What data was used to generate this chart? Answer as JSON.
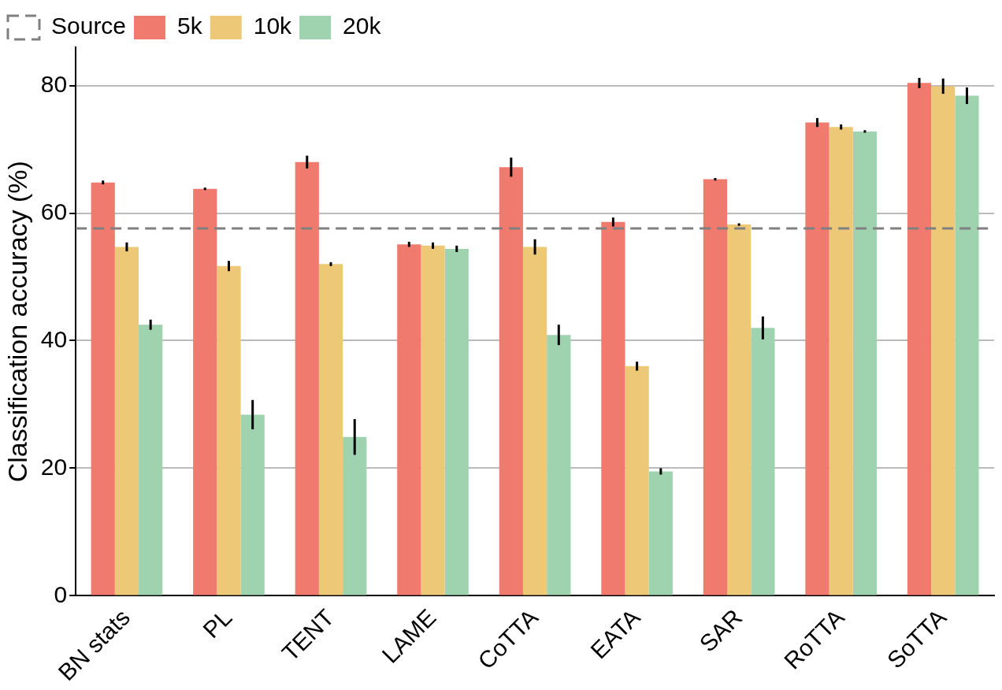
{
  "chart_data": {
    "type": "bar",
    "ylabel": "Classification accuracy (%)",
    "categories": [
      "BN stats",
      "PL",
      "TENT",
      "LAME",
      "CoTTA",
      "EATA",
      "SAR",
      "RoTTA",
      "SoTTA"
    ],
    "series": [
      {
        "name": "5k",
        "color": "#f07a6e",
        "values": [
          64.8,
          63.8,
          68.0,
          55.1,
          67.2,
          58.6,
          65.3,
          74.2,
          80.4
        ],
        "errors": [
          0.3,
          0.2,
          1.0,
          0.4,
          1.5,
          0.7,
          0.2,
          0.7,
          0.8
        ]
      },
      {
        "name": "10k",
        "color": "#edc877",
        "values": [
          54.7,
          51.7,
          52.0,
          54.9,
          54.7,
          36.0,
          58.2,
          73.5,
          79.9
        ],
        "errors": [
          0.7,
          0.8,
          0.3,
          0.5,
          1.2,
          0.7,
          0.2,
          0.4,
          1.2
        ]
      },
      {
        "name": "20k",
        "color": "#9fd3b0",
        "values": [
          42.5,
          28.4,
          24.9,
          54.4,
          40.9,
          19.5,
          42.0,
          72.8,
          78.4
        ],
        "errors": [
          0.8,
          2.3,
          2.8,
          0.5,
          1.6,
          0.5,
          1.8,
          0.2,
          1.3
        ]
      }
    ],
    "ref_lines": [
      {
        "axis": "y",
        "value": 57.6,
        "label": "Source",
        "color": "#808080",
        "line_style": "dashed"
      }
    ],
    "ylim": [
      0,
      86
    ],
    "yticks": [
      0,
      20,
      40,
      60,
      80
    ],
    "grid": "y",
    "legend": "top left"
  }
}
